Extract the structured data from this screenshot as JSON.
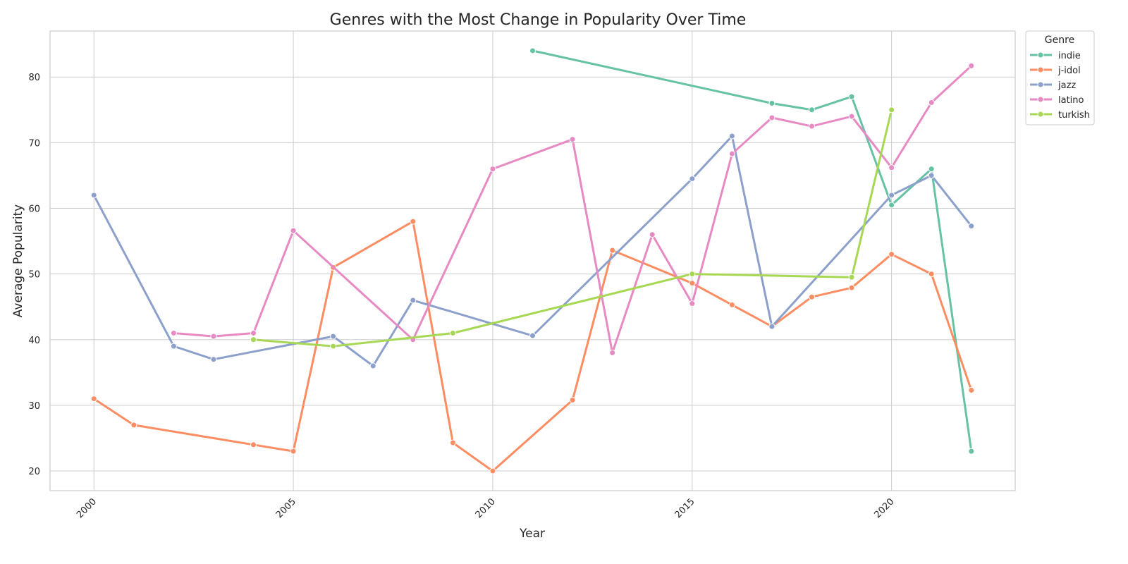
{
  "chart_data": {
    "type": "line",
    "title": "Genres with the Most Change in Popularity Over Time",
    "xlabel": "Year",
    "ylabel": "Average Popularity",
    "xlim": [
      1998.9,
      2023.1
    ],
    "ylim": [
      17.0,
      87.0
    ],
    "xticks": [
      2000,
      2005,
      2010,
      2015,
      2020
    ],
    "yticks": [
      20,
      30,
      40,
      50,
      60,
      70,
      80
    ],
    "grid": true,
    "legend": {
      "title": "Genre",
      "position": "outside-top-right"
    },
    "series": [
      {
        "name": "indie",
        "color": "#66c2a5",
        "x": [
          2011,
          2017,
          2018,
          2019,
          2020,
          2021,
          2022
        ],
        "y": [
          84,
          76,
          75,
          77,
          60.5,
          66,
          23
        ]
      },
      {
        "name": "j-idol",
        "color": "#fc8d62",
        "x": [
          2000,
          2001,
          2004,
          2005,
          2006,
          2008,
          2009,
          2010,
          2012,
          2013,
          2015,
          2016,
          2017,
          2018,
          2019,
          2020,
          2021,
          2022
        ],
        "y": [
          31,
          27,
          24,
          23,
          51,
          58,
          24.3,
          20,
          30.8,
          53.6,
          48.6,
          45.3,
          42,
          46.5,
          47.9,
          53,
          50,
          32.3
        ]
      },
      {
        "name": "jazz",
        "color": "#8da0cb",
        "x": [
          2000,
          2002,
          2003,
          2006,
          2007,
          2008,
          2011,
          2015,
          2016,
          2017,
          2020,
          2021,
          2022
        ],
        "y": [
          62,
          39,
          37,
          40.5,
          36,
          46,
          40.6,
          64.5,
          71,
          42,
          62,
          65,
          57.3
        ]
      },
      {
        "name": "latino",
        "color": "#e78ac3",
        "x": [
          2002,
          2003,
          2004,
          2005,
          2008,
          2010,
          2012,
          2013,
          2014,
          2015,
          2016,
          2017,
          2018,
          2019,
          2020,
          2021,
          2022
        ],
        "y": [
          41,
          40.5,
          41,
          56.6,
          40,
          66,
          70.5,
          38,
          56,
          45.5,
          68.3,
          73.8,
          72.5,
          74,
          66.2,
          76.1,
          81.7
        ]
      },
      {
        "name": "turkish",
        "color": "#a6d854",
        "x": [
          2004,
          2006,
          2009,
          2015,
          2019,
          2020
        ],
        "y": [
          40,
          39,
          41,
          50,
          49.5,
          75
        ]
      }
    ]
  }
}
